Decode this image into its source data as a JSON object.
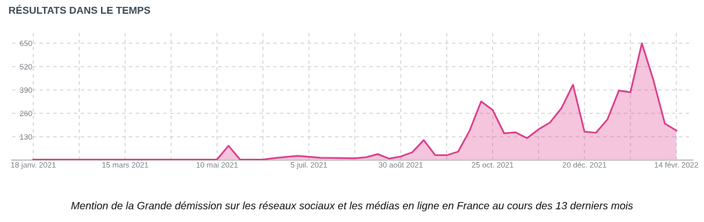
{
  "chart_data": {
    "type": "area",
    "title": "RÉSULTATS DANS LE TEMPS",
    "annotations": [
      "Mention de la Grande démission sur les réseaux sociaux et les médias en ligne en France au cours des 13 derniers mois"
    ],
    "x": [
      "2021-01-18",
      "2021-02-15",
      "2021-03-15",
      "2021-04-12",
      "2021-05-03",
      "2021-05-10",
      "2021-05-17",
      "2021-05-24",
      "2021-06-07",
      "2021-06-14",
      "2021-06-28",
      "2021-07-12",
      "2021-07-26",
      "2021-08-02",
      "2021-08-09",
      "2021-08-16",
      "2021-08-23",
      "2021-08-30",
      "2021-09-06",
      "2021-09-13",
      "2021-09-20",
      "2021-09-27",
      "2021-10-04",
      "2021-10-11",
      "2021-10-18",
      "2021-10-25",
      "2021-11-01",
      "2021-11-08",
      "2021-11-15",
      "2021-11-22",
      "2021-11-29",
      "2021-12-06",
      "2021-12-13",
      "2021-12-20",
      "2021-12-27",
      "2022-01-03",
      "2022-01-10",
      "2022-01-17",
      "2022-01-24",
      "2022-01-31",
      "2022-02-07",
      "2022-02-14"
    ],
    "series": [
      {
        "color": "#dc3f8c",
        "values": [
          2,
          2,
          2,
          2,
          2,
          3,
          80,
          3,
          2,
          11,
          23,
          13,
          11,
          10,
          16,
          33,
          8,
          20,
          43,
          111,
          27,
          27,
          47,
          164,
          326,
          279,
          149,
          154,
          122,
          171,
          209,
          289,
          419,
          158,
          152,
          226,
          387,
          377,
          649,
          445,
          203,
          164
        ]
      }
    ],
    "xlim": [
      "2021-01-05",
      "2022-02-24"
    ],
    "xticks": [
      {
        "value": "2021-01-18",
        "label": "18 janv. 2021"
      },
      {
        "value": "2021-02-15",
        "label": null
      },
      {
        "value": "2021-03-15",
        "label": "15 mars 2021"
      },
      {
        "value": "2021-04-12",
        "label": null
      },
      {
        "value": "2021-05-10",
        "label": "10 mai 2021"
      },
      {
        "value": "2021-06-07",
        "label": null
      },
      {
        "value": "2021-07-05",
        "label": "5 juil. 2021"
      },
      {
        "value": "2021-08-02",
        "label": null
      },
      {
        "value": "2021-08-30",
        "label": "30 août 2021"
      },
      {
        "value": "2021-09-27",
        "label": null
      },
      {
        "value": "2021-10-25",
        "label": "25 oct. 2021"
      },
      {
        "value": "2021-11-22",
        "label": null
      },
      {
        "value": "2021-12-20",
        "label": "20 déc. 2021"
      },
      {
        "value": "2022-01-17",
        "label": null
      },
      {
        "value": "2022-02-14",
        "label": "14 févr. 2022"
      }
    ],
    "ylim": [
      0,
      715
    ],
    "yticks": [
      130,
      260,
      390,
      520,
      650
    ],
    "grid": true,
    "line_style": "solid"
  }
}
